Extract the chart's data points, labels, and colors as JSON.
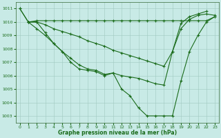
{
  "background_color": "#c8eae6",
  "grid_color": "#a0c8c0",
  "line_color": "#1a6b1a",
  "xlim": [
    -0.5,
    23.5
  ],
  "ylim": [
    1002.5,
    1011.5
  ],
  "yticks": [
    1003,
    1004,
    1005,
    1006,
    1007,
    1008,
    1009,
    1010,
    1011
  ],
  "xticks": [
    0,
    1,
    2,
    3,
    4,
    5,
    6,
    7,
    8,
    9,
    10,
    11,
    12,
    13,
    14,
    15,
    16,
    17,
    18,
    19,
    20,
    21,
    22,
    23
  ],
  "series": [
    {
      "x": [
        0,
        1,
        2,
        3,
        4,
        5,
        6,
        7,
        8,
        9,
        10,
        11,
        12,
        13,
        14,
        15,
        16,
        17,
        18,
        19,
        20,
        21,
        22,
        23
      ],
      "y": [
        1011.0,
        1010.0,
        1010.1,
        1010.1,
        1010.1,
        1010.1,
        1010.1,
        1010.1,
        1010.1,
        1010.1,
        1010.1,
        1010.1,
        1010.1,
        1010.1,
        1010.1,
        1010.1,
        1010.1,
        1010.1,
        1010.1,
        1010.1,
        1010.1,
        1010.1,
        1010.1,
        1010.4
      ]
    },
    {
      "x": [
        0,
        1,
        2,
        3,
        4,
        5,
        6,
        7,
        8,
        9,
        10,
        11,
        12,
        13,
        14,
        15,
        16,
        17,
        18,
        19,
        20,
        21,
        22
      ],
      "y": [
        1011.0,
        1010.0,
        1010.0,
        1009.8,
        1009.5,
        1009.3,
        1009.1,
        1008.9,
        1008.6,
        1008.4,
        1008.2,
        1007.9,
        1007.7,
        1007.5,
        1007.3,
        1007.1,
        1006.9,
        1006.7,
        1007.8,
        1009.9,
        1010.4,
        1010.6,
        1010.8
      ]
    },
    {
      "x": [
        1,
        2,
        3,
        4,
        5,
        6,
        7,
        8,
        9,
        10,
        11,
        12,
        13,
        14,
        15,
        16,
        17,
        18,
        19,
        20,
        21,
        22,
        23
      ],
      "y": [
        1010.0,
        1009.5,
        1009.0,
        1008.4,
        1007.8,
        1007.3,
        1006.8,
        1006.5,
        1006.4,
        1006.1,
        1006.2,
        1006.0,
        1005.9,
        1005.8,
        1005.6,
        1005.4,
        1005.3,
        1007.8,
        1009.5,
        1010.2,
        1010.5,
        1010.6,
        1010.5
      ]
    },
    {
      "x": [
        1,
        2,
        3,
        4,
        5,
        6,
        7,
        8,
        9,
        10,
        11,
        12,
        13,
        14,
        15,
        16,
        17,
        18,
        19,
        20,
        21,
        22,
        23
      ],
      "y": [
        1010.0,
        1010.0,
        1009.2,
        1008.4,
        1007.8,
        1007.0,
        1006.5,
        1006.4,
        1006.3,
        1006.0,
        1006.2,
        1005.0,
        1004.5,
        1003.6,
        1003.0,
        1003.0,
        1003.0,
        1003.0,
        1005.6,
        1007.8,
        1009.0,
        1010.0,
        1010.4
      ]
    }
  ],
  "xlabel": "Graphe pression niveau de la mer (hPa)"
}
